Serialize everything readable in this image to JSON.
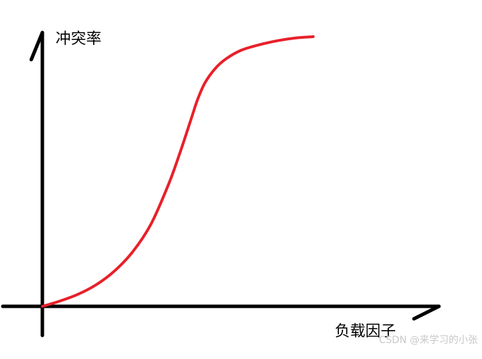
{
  "chart_data": {
    "type": "line",
    "title": "",
    "xlabel": "负载因子",
    "ylabel": "冲突率",
    "grid": false,
    "legend": "none",
    "series": [
      {
        "color": "#e8202a",
        "x": [
          0,
          0.05,
          0.1,
          0.15,
          0.2,
          0.25,
          0.3,
          0.35,
          0.38,
          0.41,
          0.43,
          0.45,
          0.48,
          0.51,
          0.55,
          0.6,
          0.65,
          0.7,
          0.75
        ],
        "y": [
          0,
          0.02,
          0.045,
          0.08,
          0.13,
          0.2,
          0.3,
          0.45,
          0.56,
          0.68,
          0.76,
          0.82,
          0.875,
          0.91,
          0.94,
          0.96,
          0.975,
          0.985,
          0.99
        ]
      }
    ],
    "xlim": [
      -0.1,
      1.0
    ],
    "ylim": [
      -0.1,
      1.05
    ]
  },
  "colors": {
    "axis": "#000000",
    "curve": "#e8202a",
    "watermark": "#c8c8c8"
  },
  "watermark": "CSDN @来学习的小张"
}
